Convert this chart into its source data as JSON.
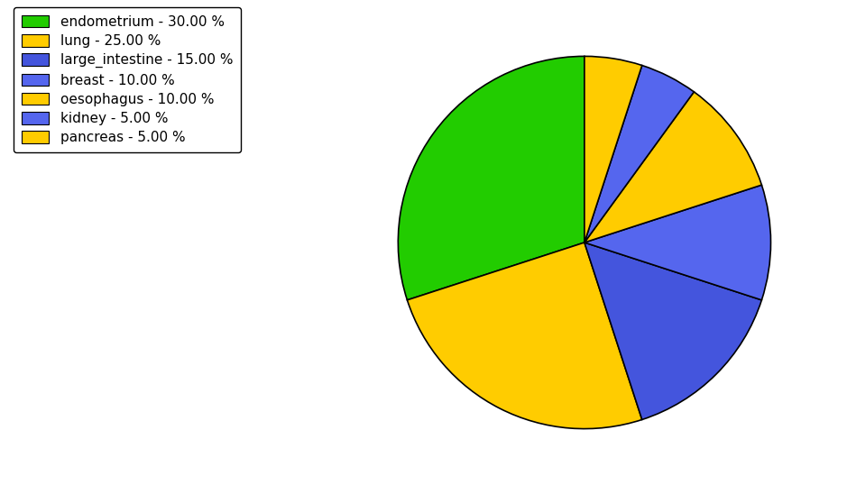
{
  "labels": [
    "endometrium",
    "lung",
    "large_intestine",
    "breast",
    "oesophagus",
    "kidney",
    "pancreas"
  ],
  "values": [
    30.0,
    25.0,
    15.0,
    10.0,
    10.0,
    5.0,
    5.0
  ],
  "colors": [
    "#22cc00",
    "#ffcc00",
    "#4455dd",
    "#5566ee",
    "#ffcc00",
    "#5566ee",
    "#ffcc00"
  ],
  "legend_labels": [
    "endometrium - 30.00 %",
    "lung - 25.00 %",
    "large_intestine - 15.00 %",
    "breast - 10.00 %",
    "oesophagus - 10.00 %",
    "kidney - 5.00 %",
    "pancreas - 5.00 %"
  ],
  "legend_colors": [
    "#22cc00",
    "#ffcc00",
    "#4455dd",
    "#5566ee",
    "#ffcc00",
    "#5566ee",
    "#ffcc00"
  ],
  "startangle": 90,
  "background_color": "#ffffff",
  "figsize": [
    9.39,
    5.38
  ],
  "dpi": 100
}
